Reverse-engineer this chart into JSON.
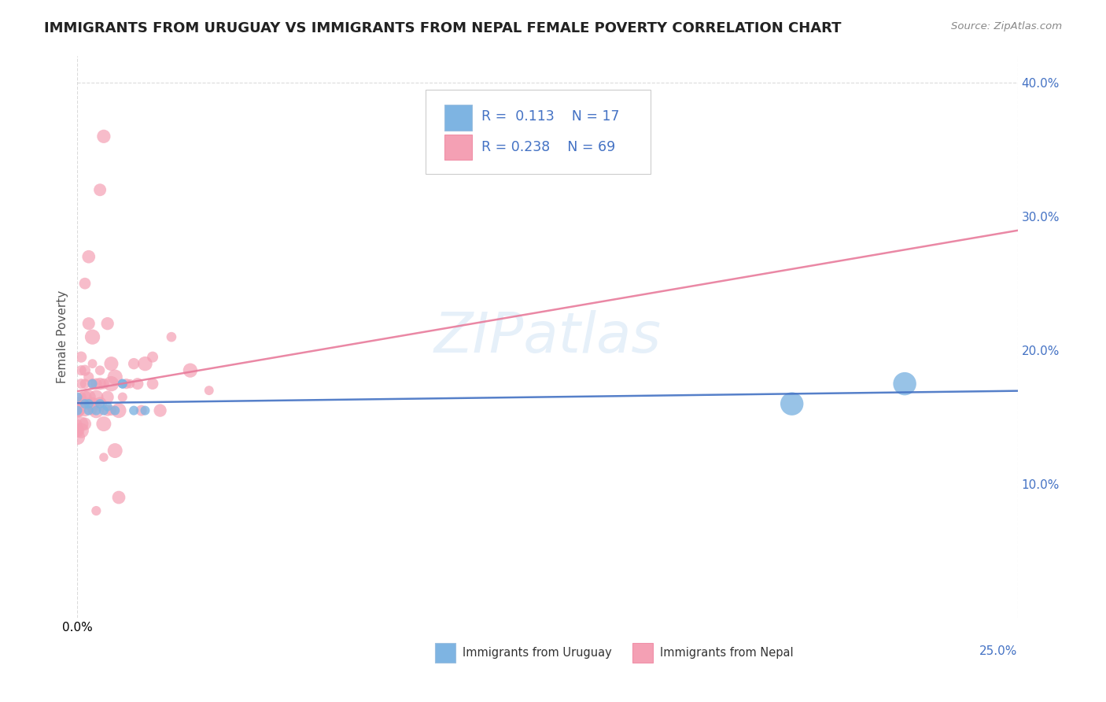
{
  "title": "IMMIGRANTS FROM URUGUAY VS IMMIGRANTS FROM NEPAL FEMALE POVERTY CORRELATION CHART",
  "source": "Source: ZipAtlas.com",
  "xlabel_bottom": "",
  "ylabel": "Female Poverty",
  "xlim": [
    0.0,
    0.25
  ],
  "ylim": [
    0.0,
    0.42
  ],
  "xtick_labels": [
    "0.0%",
    "25.0%"
  ],
  "ytick_labels_right": [
    "10.0%",
    "20.0%",
    "30.0%",
    "40.0%"
  ],
  "legend_r_uruguay": "R =  0.113",
  "legend_n_uruguay": "N = 17",
  "legend_r_nepal": "R = 0.238",
  "legend_n_nepal": "N = 69",
  "color_uruguay": "#7EB4E2",
  "color_nepal": "#F4A0B4",
  "trendline_color_uruguay": "#4472C4",
  "trendline_color_nepal": "#E87B9B",
  "watermark": "ZIPatlas",
  "background_color": "#FFFFFF",
  "uruguay_points": [
    [
      0.0,
      0.155
    ],
    [
      0.0,
      0.165
    ],
    [
      0.002,
      0.16
    ],
    [
      0.003,
      0.16
    ],
    [
      0.003,
      0.155
    ],
    [
      0.004,
      0.175
    ],
    [
      0.005,
      0.155
    ],
    [
      0.006,
      0.16
    ],
    [
      0.007,
      0.155
    ],
    [
      0.008,
      0.158
    ],
    [
      0.01,
      0.155
    ],
    [
      0.012,
      0.175
    ],
    [
      0.012,
      0.175
    ],
    [
      0.015,
      0.155
    ],
    [
      0.018,
      0.155
    ],
    [
      0.19,
      0.16
    ],
    [
      0.22,
      0.175
    ]
  ],
  "nepal_points": [
    [
      0.0,
      0.14
    ],
    [
      0.0,
      0.135
    ],
    [
      0.0,
      0.14
    ],
    [
      0.0,
      0.155
    ],
    [
      0.0,
      0.16
    ],
    [
      0.0,
      0.155
    ],
    [
      0.0,
      0.145
    ],
    [
      0.0,
      0.155
    ],
    [
      0.0,
      0.155
    ],
    [
      0.0,
      0.16
    ],
    [
      0.001,
      0.155
    ],
    [
      0.001,
      0.14
    ],
    [
      0.001,
      0.145
    ],
    [
      0.001,
      0.165
    ],
    [
      0.001,
      0.175
    ],
    [
      0.001,
      0.185
    ],
    [
      0.001,
      0.195
    ],
    [
      0.002,
      0.145
    ],
    [
      0.002,
      0.155
    ],
    [
      0.002,
      0.16
    ],
    [
      0.002,
      0.165
    ],
    [
      0.002,
      0.175
    ],
    [
      0.002,
      0.185
    ],
    [
      0.002,
      0.25
    ],
    [
      0.003,
      0.16
    ],
    [
      0.003,
      0.165
    ],
    [
      0.003,
      0.18
    ],
    [
      0.003,
      0.22
    ],
    [
      0.003,
      0.27
    ],
    [
      0.004,
      0.155
    ],
    [
      0.004,
      0.16
    ],
    [
      0.004,
      0.175
    ],
    [
      0.004,
      0.19
    ],
    [
      0.004,
      0.21
    ],
    [
      0.005,
      0.155
    ],
    [
      0.005,
      0.165
    ],
    [
      0.005,
      0.175
    ],
    [
      0.005,
      0.08
    ],
    [
      0.006,
      0.16
    ],
    [
      0.006,
      0.175
    ],
    [
      0.006,
      0.185
    ],
    [
      0.006,
      0.32
    ],
    [
      0.007,
      0.12
    ],
    [
      0.007,
      0.145
    ],
    [
      0.007,
      0.175
    ],
    [
      0.007,
      0.36
    ],
    [
      0.008,
      0.155
    ],
    [
      0.008,
      0.165
    ],
    [
      0.008,
      0.22
    ],
    [
      0.009,
      0.155
    ],
    [
      0.009,
      0.175
    ],
    [
      0.009,
      0.19
    ],
    [
      0.01,
      0.18
    ],
    [
      0.01,
      0.125
    ],
    [
      0.011,
      0.09
    ],
    [
      0.011,
      0.155
    ],
    [
      0.012,
      0.165
    ],
    [
      0.013,
      0.175
    ],
    [
      0.014,
      0.175
    ],
    [
      0.015,
      0.19
    ],
    [
      0.016,
      0.175
    ],
    [
      0.017,
      0.155
    ],
    [
      0.018,
      0.19
    ],
    [
      0.02,
      0.175
    ],
    [
      0.02,
      0.195
    ],
    [
      0.022,
      0.155
    ],
    [
      0.025,
      0.21
    ],
    [
      0.03,
      0.185
    ],
    [
      0.035,
      0.17
    ]
  ],
  "uruguay_sizes": [
    5,
    5,
    5,
    5,
    5,
    5,
    5,
    5,
    5,
    5,
    5,
    5,
    5,
    5,
    5,
    30,
    30
  ],
  "nepal_sizes_base": 8,
  "grid_color": "#CCCCCC",
  "grid_style": "--"
}
